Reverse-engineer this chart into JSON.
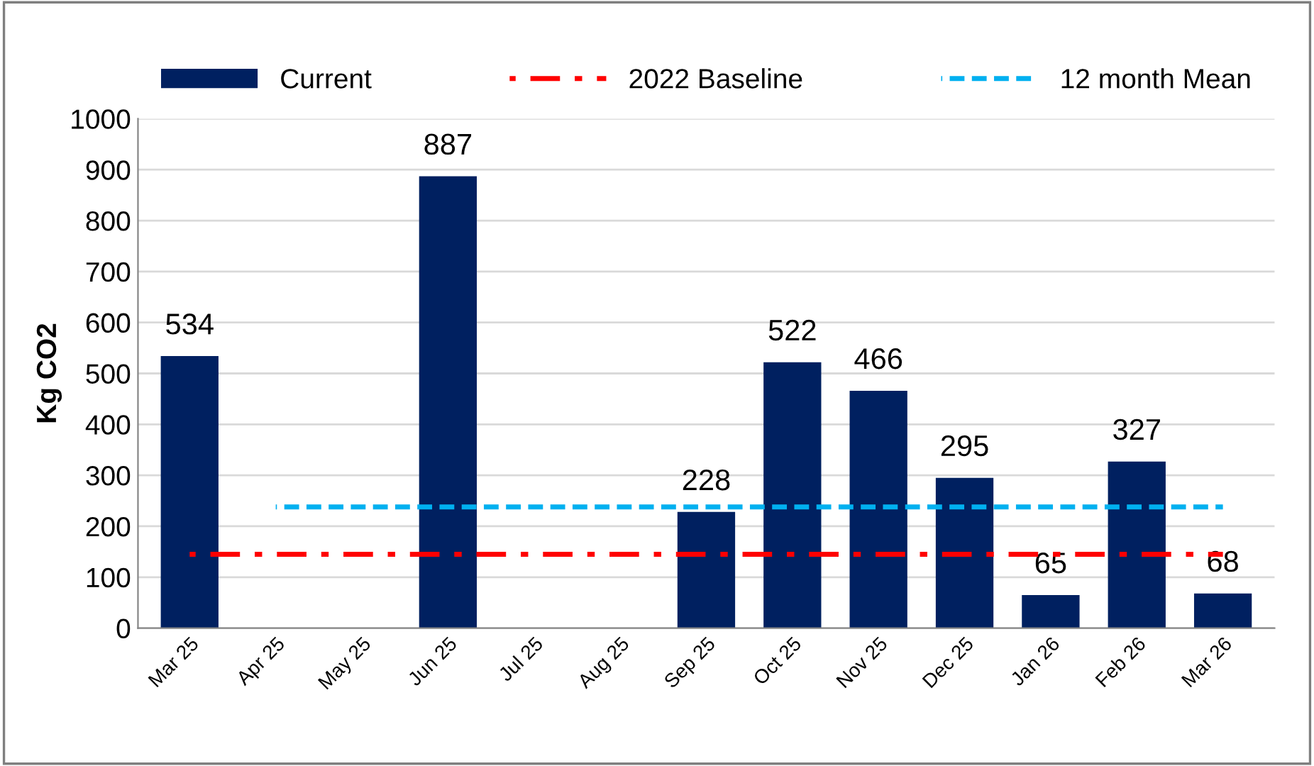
{
  "chart_data": {
    "type": "bar",
    "ylabel": "Kg CO2",
    "categories": [
      "Mar 25",
      "Apr 25",
      "May 25",
      "Jun 25",
      "Jul 25",
      "Aug 25",
      "Sep 25",
      "Oct 25",
      "Nov 25",
      "Dec 25",
      "Jan 26",
      "Feb 26",
      "Mar 26"
    ],
    "series": [
      {
        "name": "Current",
        "color": "#002060",
        "data_labels": true,
        "values": [
          534,
          null,
          null,
          887,
          null,
          null,
          228,
          522,
          466,
          295,
          65,
          327,
          68
        ]
      },
      {
        "name": "2022 Baseline",
        "type": "line",
        "color": "#ff0000",
        "line_style": "dashdot",
        "values": [
          145,
          145,
          145,
          145,
          145,
          145,
          145,
          145,
          145,
          145,
          145,
          145,
          145
        ]
      },
      {
        "name": "12 month Mean",
        "type": "line",
        "color": "#00b0f0",
        "line_style": "dashed",
        "values": [
          null,
          238,
          238,
          238,
          238,
          238,
          238,
          238,
          238,
          238,
          238,
          238,
          238
        ]
      }
    ],
    "ylim": [
      0,
      1000
    ],
    "yticks": [
      0,
      100,
      200,
      300,
      400,
      500,
      600,
      700,
      800,
      900,
      1000
    ],
    "grid": "y",
    "legend": "top"
  }
}
